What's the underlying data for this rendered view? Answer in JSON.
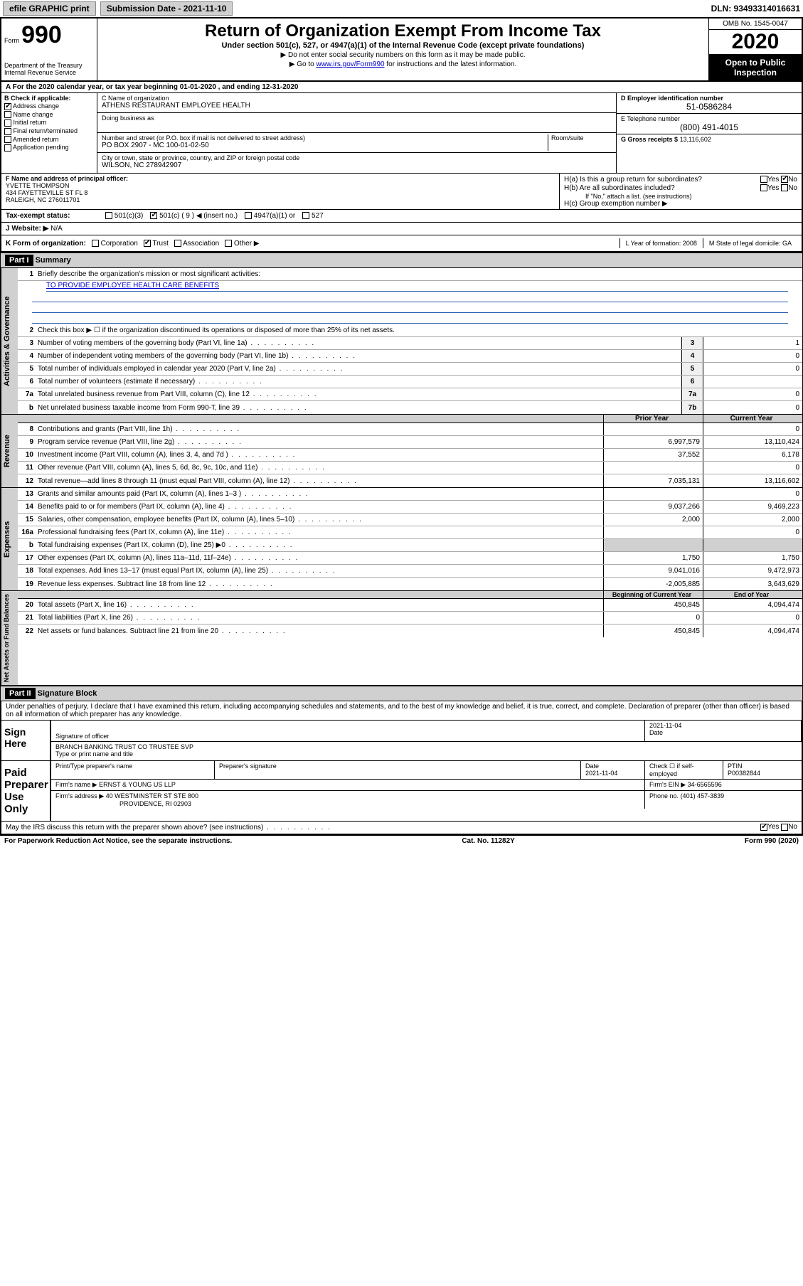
{
  "toolbar": {
    "efile": "efile GRAPHIC print",
    "submission_label": "Submission Date - 2021-11-10",
    "dln": "DLN: 93493314016631"
  },
  "header": {
    "form_word": "Form",
    "form_num": "990",
    "title": "Return of Organization Exempt From Income Tax",
    "subtitle": "Under section 501(c), 527, or 4947(a)(1) of the Internal Revenue Code (except private foundations)",
    "instr1": "▶ Do not enter social security numbers on this form as it may be made public.",
    "instr2_pre": "▶ Go to ",
    "instr2_link": "www.irs.gov/Form990",
    "instr2_post": " for instructions and the latest information.",
    "omb": "OMB No. 1545-0047",
    "year": "2020",
    "open_public": "Open to Public Inspection",
    "dept": "Department of the Treasury",
    "irs": "Internal Revenue Service"
  },
  "section_a": "A   For the 2020 calendar year, or tax year beginning 01-01-2020    , and ending 12-31-2020",
  "b": {
    "label": "B Check if applicable:",
    "items": [
      "Address change",
      "Name change",
      "Initial return",
      "Final return/terminated",
      "Amended return",
      "Application pending"
    ],
    "checked_idx": 0
  },
  "c": {
    "name_label": "C Name of organization",
    "name": "ATHENS RESTAURANT EMPLOYEE HEALTH",
    "dba_label": "Doing business as",
    "dba": "",
    "street_label": "Number and street (or P.O. box if mail is not delivered to street address)",
    "room_label": "Room/suite",
    "street": "PO BOX 2907 - MC 100-01-02-50",
    "city_label": "City or town, state or province, country, and ZIP or foreign postal code",
    "city": "WILSON, NC  278942907"
  },
  "d": {
    "label": "D Employer identification number",
    "val": "51-0586284"
  },
  "e": {
    "label": "E Telephone number",
    "val": "(800) 491-4015"
  },
  "g": {
    "label": "G Gross receipts $",
    "val": "13,116,602"
  },
  "f": {
    "label": "F  Name and address of principal officer:",
    "name": "YVETTE THOMPSON",
    "addr1": "434 FAYETTEVILLE ST FL 8",
    "addr2": "RALEIGH, NC  276011701"
  },
  "h": {
    "a": "H(a)  Is this a group return for subordinates?",
    "a_yes": "Yes",
    "a_no": "No",
    "b": "H(b)  Are all subordinates included?",
    "b_yes": "Yes",
    "b_no": "No",
    "b_note": "If \"No,\" attach a list. (see instructions)",
    "c": "H(c)  Group exemption number ▶"
  },
  "i": {
    "label": "Tax-exempt status:",
    "opt1": "501(c)(3)",
    "opt2": "501(c) ( 9 ) ◀ (insert no.)",
    "opt3": "4947(a)(1) or",
    "opt4": "527"
  },
  "j": {
    "label": "J   Website: ▶",
    "val": "N/A"
  },
  "k": {
    "label": "K Form of organization:",
    "opts": [
      "Corporation",
      "Trust",
      "Association",
      "Other ▶"
    ],
    "checked_idx": 1
  },
  "l": {
    "label": "L Year of formation:",
    "val": "2008"
  },
  "m": {
    "label": "M State of legal domicile:",
    "val": "GA"
  },
  "part1": {
    "hdr": "Part I",
    "title": "Summary"
  },
  "governance": {
    "tab": "Activities & Governance",
    "l1": "Briefly describe the organization's mission or most significant activities:",
    "mission": "TO PROVIDE EMPLOYEE HEALTH CARE BENEFITS",
    "l2": "Check this box ▶ ☐  if the organization discontinued its operations or disposed of more than 25% of its net assets.",
    "rows": [
      {
        "n": "3",
        "t": "Number of voting members of the governing body (Part VI, line 1a)",
        "box": "3",
        "v": "1"
      },
      {
        "n": "4",
        "t": "Number of independent voting members of the governing body (Part VI, line 1b)",
        "box": "4",
        "v": "0"
      },
      {
        "n": "5",
        "t": "Total number of individuals employed in calendar year 2020 (Part V, line 2a)",
        "box": "5",
        "v": "0"
      },
      {
        "n": "6",
        "t": "Total number of volunteers (estimate if necessary)",
        "box": "6",
        "v": ""
      },
      {
        "n": "7a",
        "t": "Total unrelated business revenue from Part VIII, column (C), line 12",
        "box": "7a",
        "v": "0"
      },
      {
        "n": "b",
        "t": "Net unrelated business taxable income from Form 990-T, line 39",
        "box": "7b",
        "v": "0"
      }
    ]
  },
  "revenue": {
    "tab": "Revenue",
    "hdr_prior": "Prior Year",
    "hdr_curr": "Current Year",
    "rows": [
      {
        "n": "8",
        "t": "Contributions and grants (Part VIII, line 1h)",
        "p": "",
        "c": "0"
      },
      {
        "n": "9",
        "t": "Program service revenue (Part VIII, line 2g)",
        "p": "6,997,579",
        "c": "13,110,424"
      },
      {
        "n": "10",
        "t": "Investment income (Part VIII, column (A), lines 3, 4, and 7d )",
        "p": "37,552",
        "c": "6,178"
      },
      {
        "n": "11",
        "t": "Other revenue (Part VIII, column (A), lines 5, 6d, 8c, 9c, 10c, and 11e)",
        "p": "",
        "c": "0"
      },
      {
        "n": "12",
        "t": "Total revenue—add lines 8 through 11 (must equal Part VIII, column (A), line 12)",
        "p": "7,035,131",
        "c": "13,116,602"
      }
    ]
  },
  "expenses": {
    "tab": "Expenses",
    "rows": [
      {
        "n": "13",
        "t": "Grants and similar amounts paid (Part IX, column (A), lines 1–3 )",
        "p": "",
        "c": "0"
      },
      {
        "n": "14",
        "t": "Benefits paid to or for members (Part IX, column (A), line 4)",
        "p": "9,037,266",
        "c": "9,469,223"
      },
      {
        "n": "15",
        "t": "Salaries, other compensation, employee benefits (Part IX, column (A), lines 5–10)",
        "p": "2,000",
        "c": "2,000"
      },
      {
        "n": "16a",
        "t": "Professional fundraising fees (Part IX, column (A), line 11e)",
        "p": "",
        "c": "0"
      },
      {
        "n": "b",
        "t": "Total fundraising expenses (Part IX, column (D), line 25) ▶0",
        "p": "",
        "c": "",
        "shade": true
      },
      {
        "n": "17",
        "t": "Other expenses (Part IX, column (A), lines 11a–11d, 11f–24e)",
        "p": "1,750",
        "c": "1,750"
      },
      {
        "n": "18",
        "t": "Total expenses. Add lines 13–17 (must equal Part IX, column (A), line 25)",
        "p": "9,041,016",
        "c": "9,472,973"
      },
      {
        "n": "19",
        "t": "Revenue less expenses. Subtract line 18 from line 12",
        "p": "-2,005,885",
        "c": "3,643,629"
      }
    ]
  },
  "netassets": {
    "tab": "Net Assets or Fund Balances",
    "hdr_prior": "Beginning of Current Year",
    "hdr_curr": "End of Year",
    "rows": [
      {
        "n": "20",
        "t": "Total assets (Part X, line 16)",
        "p": "450,845",
        "c": "4,094,474"
      },
      {
        "n": "21",
        "t": "Total liabilities (Part X, line 26)",
        "p": "0",
        "c": "0"
      },
      {
        "n": "22",
        "t": "Net assets or fund balances. Subtract line 21 from line 20",
        "p": "450,845",
        "c": "4,094,474"
      }
    ]
  },
  "part2": {
    "hdr": "Part II",
    "title": "Signature Block"
  },
  "perjury": "Under penalties of perjury, I declare that I have examined this return, including accompanying schedules and statements, and to the best of my knowledge and belief, it is true, correct, and complete. Declaration of preparer (other than officer) is based on all information of which preparer has any knowledge.",
  "sign": {
    "here": "Sign Here",
    "sig_officer": "Signature of officer",
    "date_label": "Date",
    "date": "2021-11-04",
    "name": "BRANCH BANKING TRUST CO TRUSTEE  SVP",
    "name_label": "Type or print name and title"
  },
  "paid": {
    "label": "Paid Preparer Use Only",
    "h1": "Print/Type preparer's name",
    "h2": "Preparer's signature",
    "h3_label": "Date",
    "h3": "2021-11-04",
    "h4_label": "Check ☐ if self-employed",
    "h5_label": "PTIN",
    "h5": "P00382844",
    "firm_name_label": "Firm's name    ▶",
    "firm_name": "ERNST & YOUNG US LLP",
    "firm_ein_label": "Firm's EIN ▶",
    "firm_ein": "34-6565596",
    "firm_addr_label": "Firm's address ▶",
    "firm_addr1": "40 WESTMINSTER ST STE 800",
    "firm_addr2": "PROVIDENCE, RI  02903",
    "phone_label": "Phone no.",
    "phone": "(401) 457-3839"
  },
  "discuss": {
    "text": "May the IRS discuss this return with the preparer shown above? (see instructions)",
    "yes": "Yes",
    "no": "No"
  },
  "footer": {
    "left": "For Paperwork Reduction Act Notice, see the separate instructions.",
    "mid": "Cat. No. 11282Y",
    "right": "Form 990 (2020)"
  },
  "colors": {
    "link": "#0000cc",
    "shade": "#d0d0d0",
    "border": "#000000"
  }
}
